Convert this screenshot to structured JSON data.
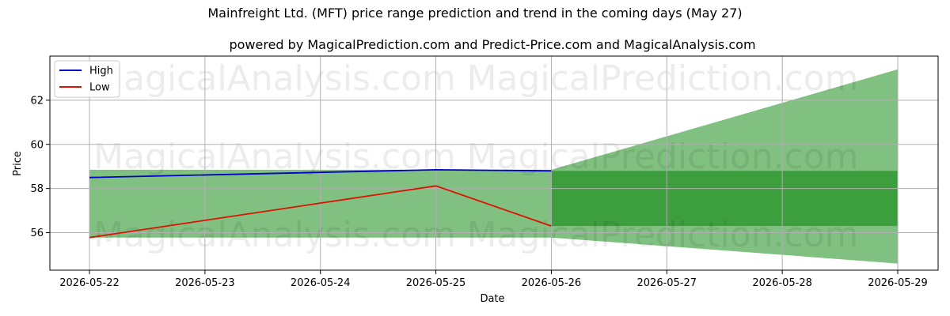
{
  "chart_data": {
    "type": "line",
    "title": "Mainfreight Ltd. (MFT) price range prediction and trend in the coming days (May 27)",
    "subtitle": "powered by MagicalPrediction.com and Predict-Price.com and MagicalAnalysis.com",
    "xlabel": "Date",
    "ylabel": "Price",
    "x": [
      "2026-05-22",
      "2026-05-23",
      "2026-05-24",
      "2026-05-25",
      "2026-05-26",
      "2026-05-27",
      "2026-05-28",
      "2026-05-29"
    ],
    "yticks": [
      56,
      58,
      60,
      62
    ],
    "ylim": [
      54.3,
      64.0
    ],
    "grid": true,
    "legend_position": "top-left",
    "series": [
      {
        "name": "High",
        "color": "#0000cc",
        "x": [
          "2026-05-22",
          "2026-05-25",
          "2026-05-26"
        ],
        "values": [
          58.5,
          58.85,
          58.8
        ]
      },
      {
        "name": "Low",
        "color": "#dd1100",
        "x": [
          "2026-05-22",
          "2026-05-25",
          "2026-05-26"
        ],
        "values": [
          55.78,
          58.12,
          56.3
        ]
      }
    ],
    "historical_band": {
      "color": "#80c080",
      "x": [
        "2026-05-22",
        "2026-05-26"
      ],
      "upper": 58.85,
      "lower": 55.78
    },
    "prediction_outer_band": {
      "color": "#80c080",
      "x": [
        "2026-05-26",
        "2026-05-29"
      ],
      "upper": [
        58.85,
        63.4
      ],
      "lower": [
        55.78,
        54.6
      ]
    },
    "prediction_inner_band": {
      "color": "#3d9e3d",
      "x": [
        "2026-05-26",
        "2026-05-29"
      ],
      "upper": 58.8,
      "lower": 56.3
    },
    "watermarks": [
      "MagicalAnalysis.com",
      "MagicalPrediction.com"
    ]
  }
}
